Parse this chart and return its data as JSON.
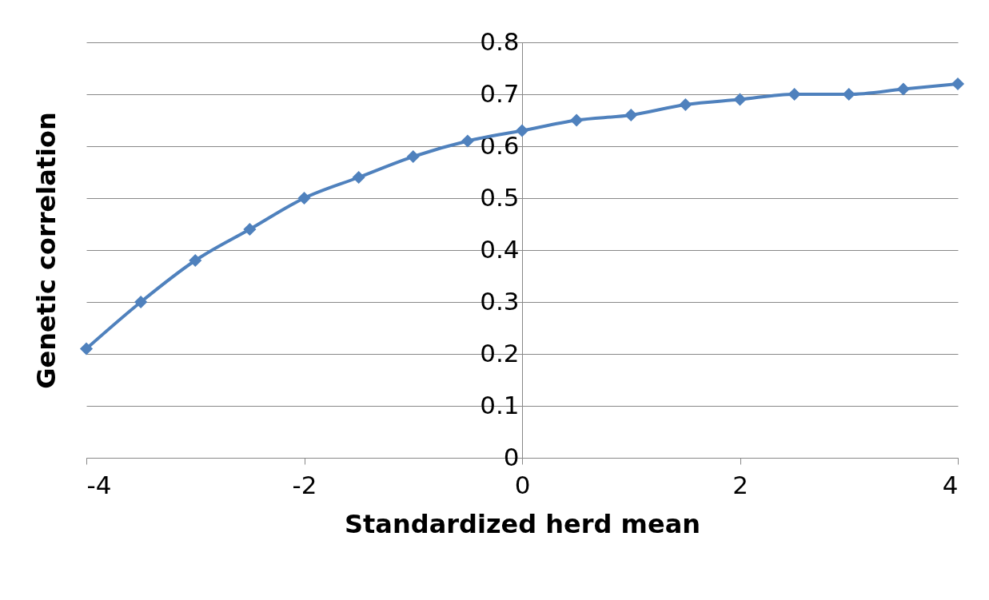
{
  "chart_data": {
    "type": "line",
    "xlabel": "Standardized herd mean",
    "ylabel": "Genetic correlation",
    "x": [
      -4,
      -3.5,
      -3,
      -2.5,
      -2,
      -1.5,
      -1,
      -0.5,
      0,
      0.5,
      1,
      1.5,
      2,
      2.5,
      3,
      3.5,
      4
    ],
    "series": [
      {
        "color": "#4f81bd",
        "values": [
          0.21,
          0.3,
          0.38,
          0.44,
          0.5,
          0.54,
          0.58,
          0.61,
          0.63,
          0.65,
          0.66,
          0.68,
          0.69,
          0.7,
          0.7,
          0.71,
          0.72
        ]
      }
    ],
    "xlim": [
      -4,
      4
    ],
    "xticks": [
      -4,
      -2,
      0,
      2,
      4
    ],
    "ylim": [
      0,
      0.8
    ],
    "yticks": [
      0,
      0.1,
      0.2,
      0.3,
      0.4,
      0.5,
      0.6,
      0.7,
      0.8
    ],
    "grid": "y",
    "marker": "diamond",
    "line_style": "solid",
    "legend": false
  }
}
